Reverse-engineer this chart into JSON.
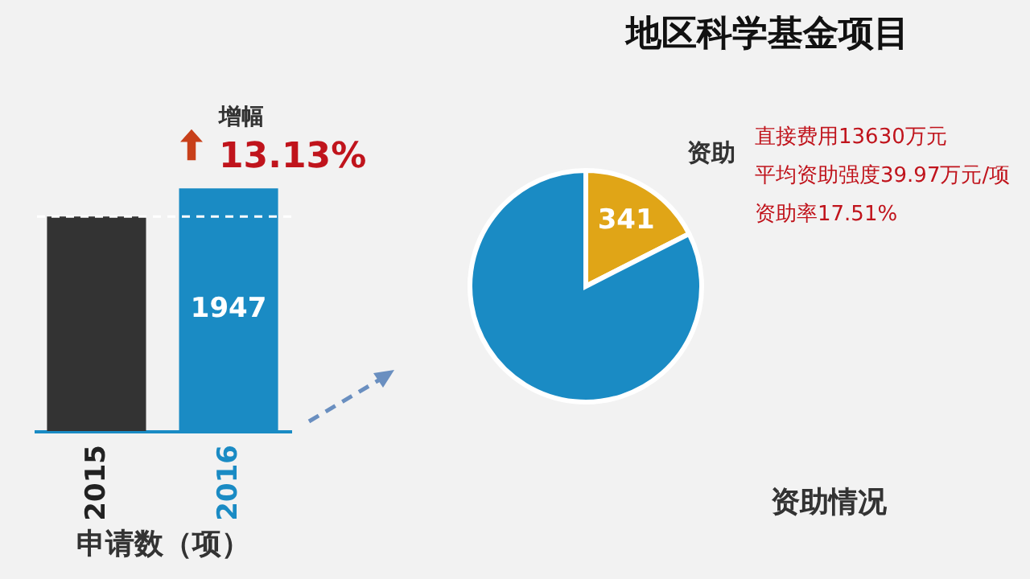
{
  "chart_data": [
    {
      "type": "bar",
      "xlabel": "申请数（项）",
      "categories": [
        "2015",
        "2016"
      ],
      "values": [
        1721,
        1947
      ],
      "colors": [
        "#333333",
        "#1a8bc4"
      ],
      "value_labels": [
        null,
        "1947"
      ],
      "ref_lines": [
        {
          "axis": "y",
          "value": 1721,
          "color": "#ffffff",
          "line_style": "dashed"
        }
      ],
      "annotations": [
        "增幅",
        "13.13%"
      ]
    },
    {
      "type": "pie",
      "title": "地区科学基金项目",
      "categories": [
        null,
        null
      ],
      "values": [
        341,
        1606
      ],
      "colors": [
        "#e0a517",
        "#1a8bc4"
      ],
      "value_labels": [
        "341",
        null
      ],
      "annotations": [
        "资助",
        "直接费用13630万元",
        "平均资助强度39.97万元/项",
        "资助率17.51%",
        "资助情况"
      ]
    }
  ]
}
